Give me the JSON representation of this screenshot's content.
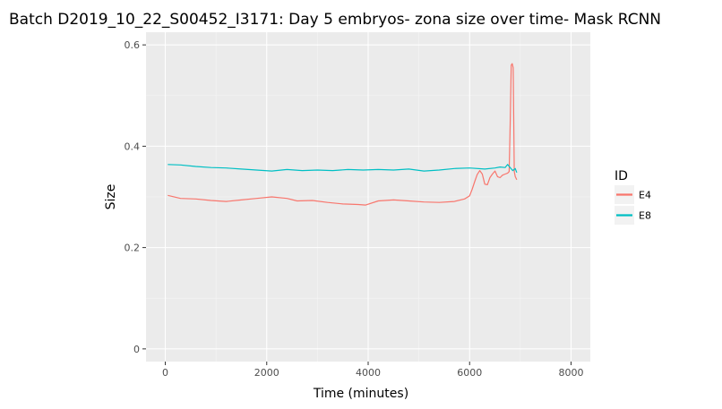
{
  "chart_data": {
    "type": "line",
    "title": "Batch D2019_10_22_S00452_I3171: Day 5 embryos- zona size over time- Mask RCNN",
    "xlabel": "Time (minutes)",
    "ylabel": "Size",
    "xlim": [
      -380,
      8380
    ],
    "ylim": [
      -0.025,
      0.625
    ],
    "x_ticks": [
      0,
      2000,
      4000,
      6000,
      8000
    ],
    "y_ticks": [
      0,
      0.2,
      0.4,
      0.6
    ],
    "x_tick_labels": [
      "0",
      "2000",
      "4000",
      "6000",
      "8000"
    ],
    "y_tick_labels": [
      "0",
      "0.2",
      "0.4",
      "0.6"
    ],
    "grid": true,
    "legend": {
      "title": "ID",
      "position": "right"
    },
    "series": [
      {
        "name": "E4",
        "color": "#F8766D",
        "x": [
          50,
          300,
          600,
          900,
          1200,
          1500,
          1800,
          2100,
          2400,
          2600,
          2900,
          3200,
          3500,
          3800,
          3950,
          4200,
          4500,
          4800,
          5100,
          5400,
          5700,
          5900,
          6000,
          6050,
          6100,
          6150,
          6200,
          6250,
          6300,
          6350,
          6400,
          6450,
          6500,
          6550,
          6600,
          6650,
          6700,
          6750,
          6780,
          6800,
          6820,
          6840,
          6860,
          6880,
          6900,
          6930
        ],
        "values": [
          0.303,
          0.297,
          0.296,
          0.293,
          0.291,
          0.294,
          0.297,
          0.3,
          0.297,
          0.292,
          0.293,
          0.289,
          0.286,
          0.285,
          0.284,
          0.292,
          0.294,
          0.292,
          0.29,
          0.289,
          0.291,
          0.296,
          0.302,
          0.315,
          0.33,
          0.344,
          0.352,
          0.345,
          0.325,
          0.324,
          0.338,
          0.345,
          0.351,
          0.34,
          0.338,
          0.343,
          0.345,
          0.347,
          0.35,
          0.44,
          0.56,
          0.563,
          0.555,
          0.35,
          0.34,
          0.334
        ]
      },
      {
        "name": "E8",
        "color": "#00BFC4",
        "x": [
          50,
          300,
          600,
          900,
          1200,
          1500,
          1800,
          2100,
          2400,
          2700,
          3000,
          3300,
          3600,
          3900,
          4200,
          4500,
          4800,
          5100,
          5400,
          5700,
          6000,
          6300,
          6500,
          6600,
          6700,
          6750,
          6800,
          6850,
          6900,
          6930
        ],
        "values": [
          0.364,
          0.363,
          0.36,
          0.358,
          0.357,
          0.355,
          0.353,
          0.351,
          0.354,
          0.352,
          0.353,
          0.352,
          0.354,
          0.353,
          0.354,
          0.353,
          0.355,
          0.351,
          0.353,
          0.356,
          0.357,
          0.355,
          0.357,
          0.359,
          0.358,
          0.364,
          0.358,
          0.352,
          0.356,
          0.348
        ]
      }
    ]
  }
}
